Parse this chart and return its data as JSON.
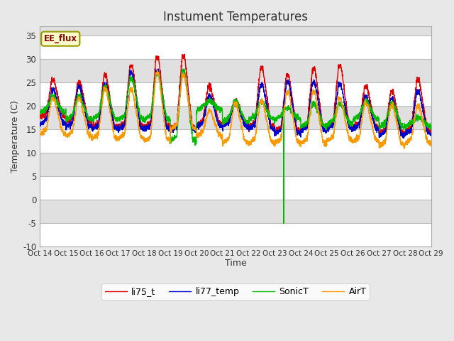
{
  "title": "Instument Temperatures",
  "xlabel": "Time",
  "ylabel": "Temperature (C)",
  "ylim": [
    -10,
    37
  ],
  "xlim": [
    0,
    15
  ],
  "fig_bg_color": "#e8e8e8",
  "plot_bg_color": "#e0e0e0",
  "white_band_color": "#f5f5f5",
  "gray_band_color": "#e0e0e0",
  "annotation_label": "EE_flux",
  "annotation_box_color": "#ffffcc",
  "annotation_border_color": "#999900",
  "annotation_text_color": "#880000",
  "legend_entries": [
    "li75_t",
    "li77_temp",
    "SonicT",
    "AirT"
  ],
  "line_colors": [
    "#dd0000",
    "#0000cc",
    "#00bb00",
    "#ff9900"
  ],
  "xtick_labels": [
    "Oct 14",
    "Oct 15",
    "Oct 16",
    "Oct 17",
    "Oct 18",
    "Oct 19",
    "Oct 20",
    "Oct 21",
    "Oct 22",
    "Oct 23",
    "Oct 24",
    "Oct 25",
    "Oct 26",
    "Oct 27",
    "Oct 28",
    "Oct 29"
  ],
  "ytick_values": [
    -10,
    -5,
    0,
    5,
    10,
    15,
    20,
    25,
    30,
    35
  ],
  "spike_x": 9.35,
  "spike_bottom": -9.5
}
